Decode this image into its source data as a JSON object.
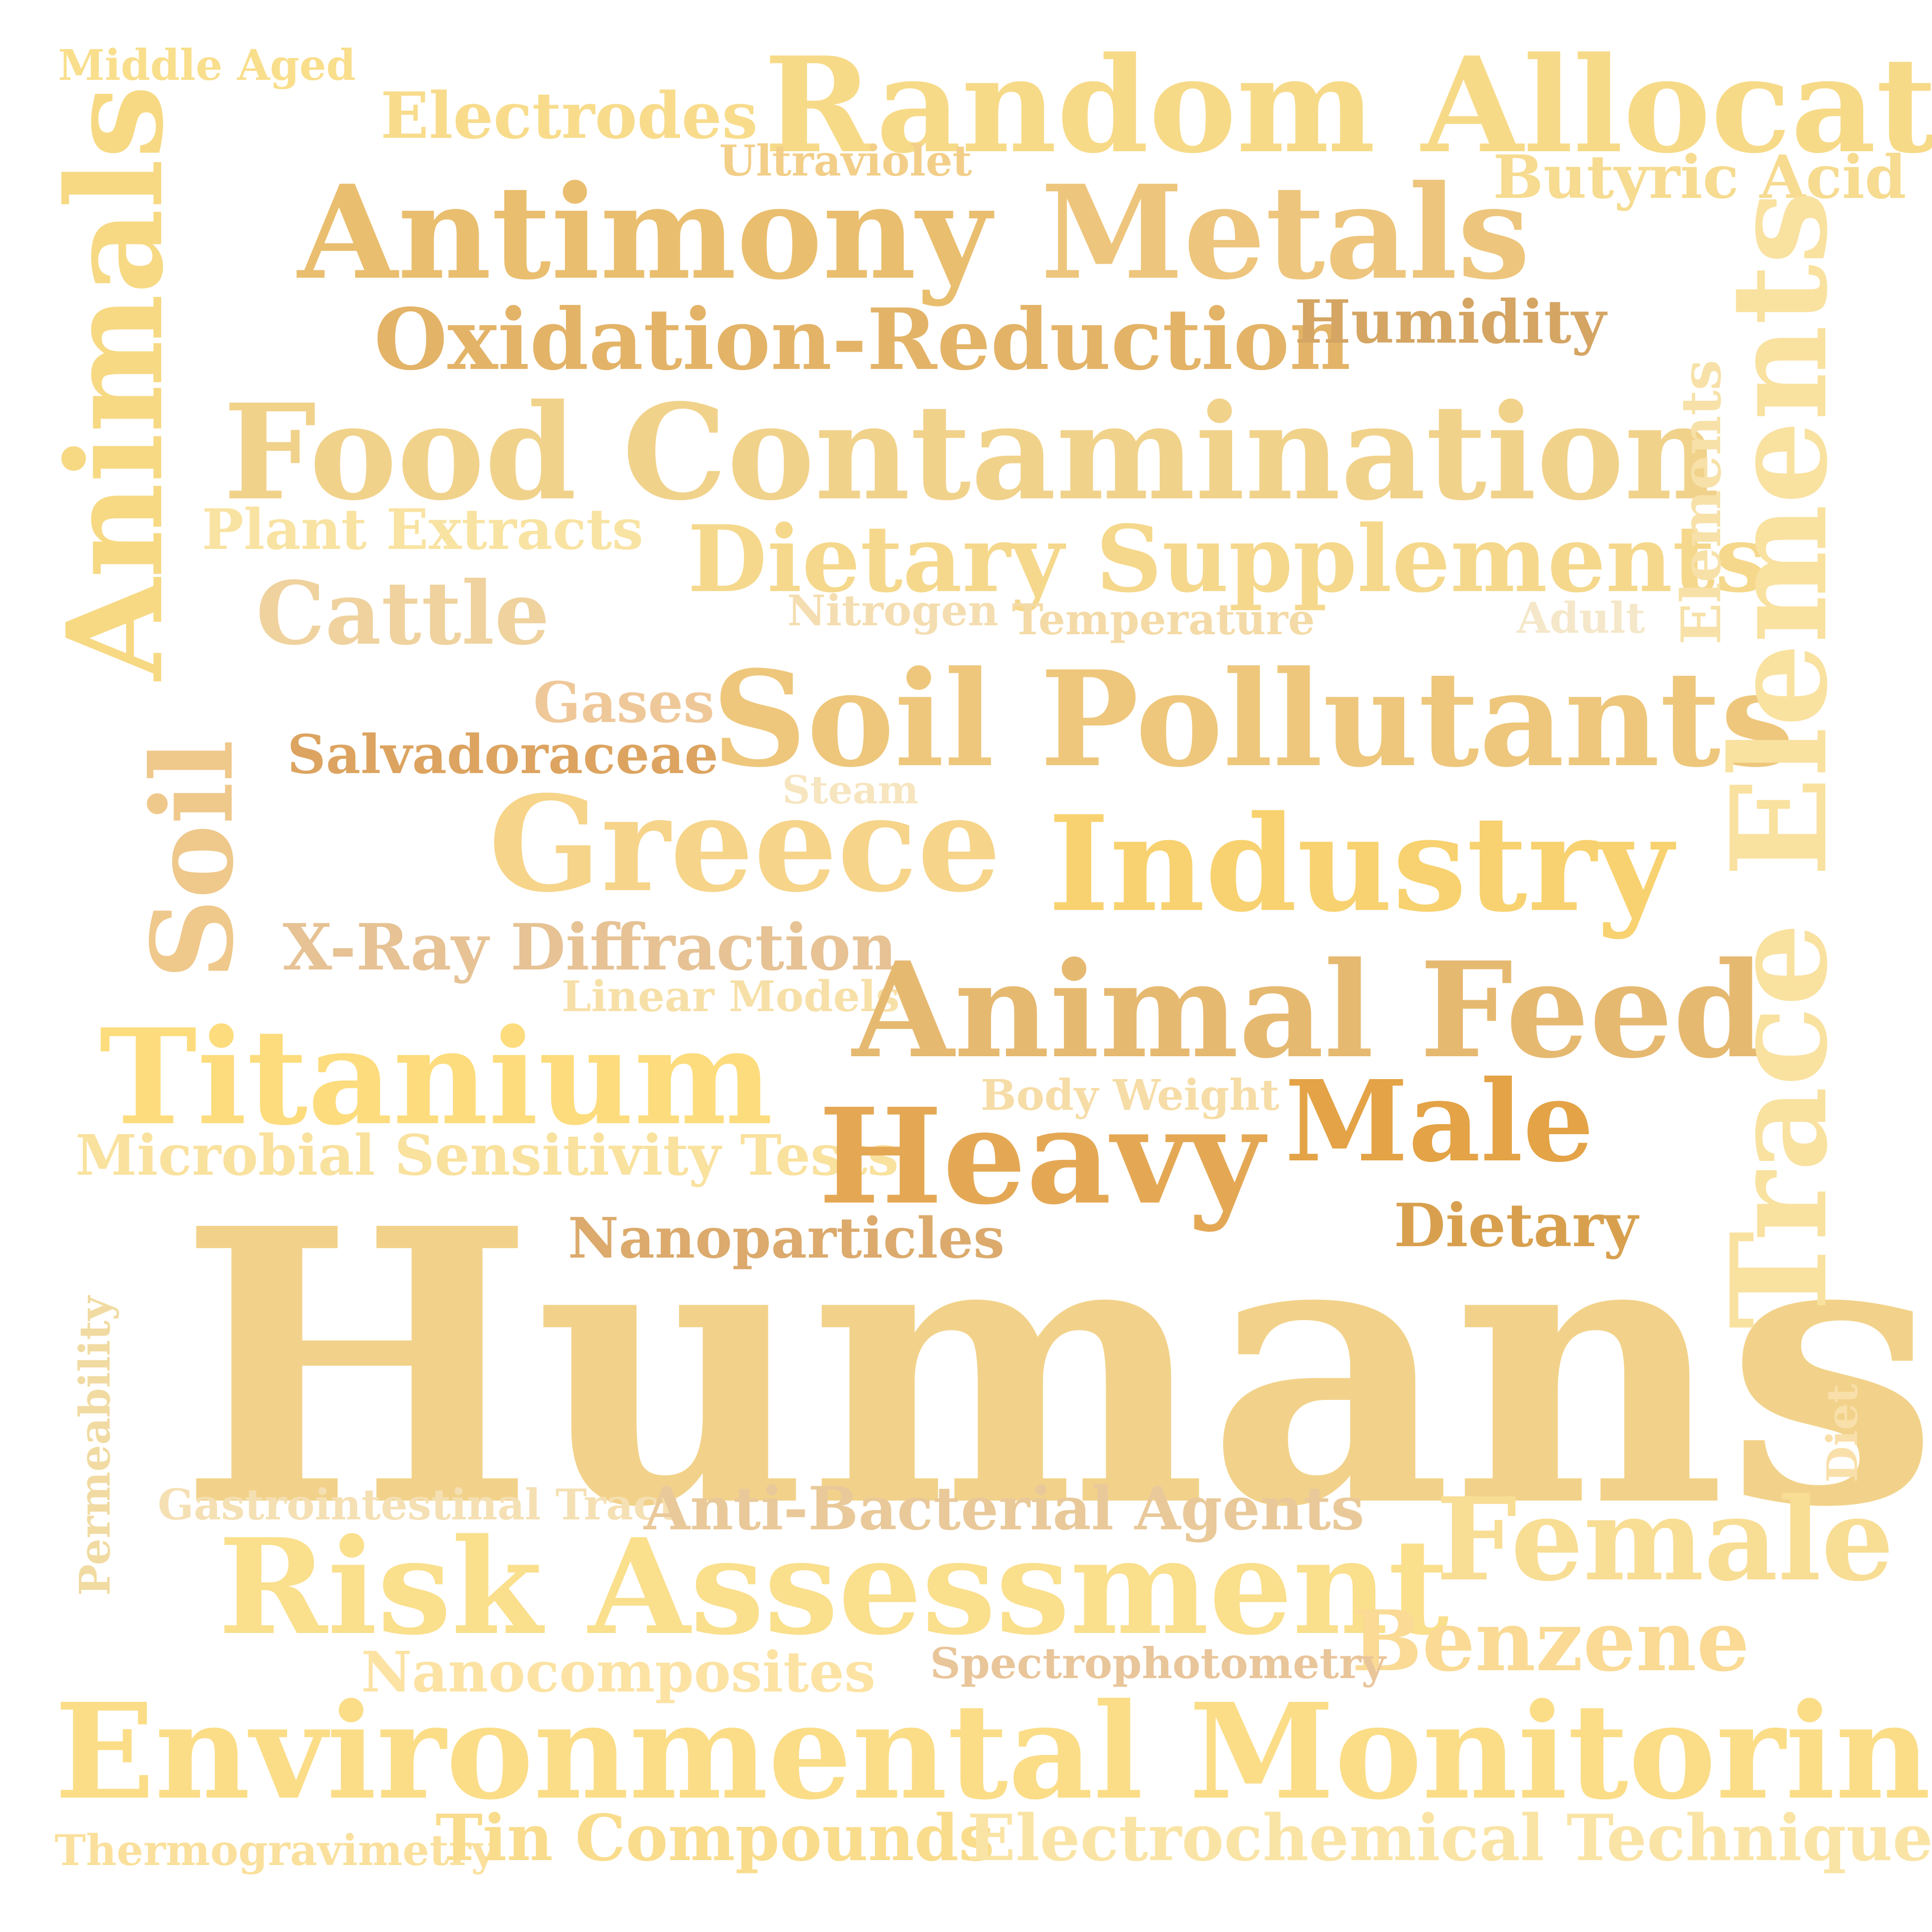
{
  "words": {
    "middle_aged": {
      "text": "Middle Aged",
      "color": "#F9DE8C"
    },
    "electrodes": {
      "text": "Electrodes",
      "color": "#F8DC8C"
    },
    "random_allocation": {
      "text": "Random Allocation",
      "color": "#F7DA88"
    },
    "ultraviolet": {
      "text": "Ultraviolet",
      "color": "#F2CE88"
    },
    "butyric_acid": {
      "text": "Butyric Acid",
      "color": "#F6DB90"
    },
    "animals": {
      "text": "Animals",
      "color": "#F7D984"
    },
    "antimony": {
      "text": "Antimony",
      "color": "#E9BE6E"
    },
    "metals": {
      "text": "Metals",
      "color": "#EDC57C"
    },
    "oxidation_reduction": {
      "text": "Oxidation-Reduction",
      "color": "#E3B367"
    },
    "humidity": {
      "text": "Humidity",
      "color": "#D4A563"
    },
    "trace_elements": {
      "text": "Trace Elements",
      "color": "#F9E1A0"
    },
    "elements": {
      "text": "Elements",
      "color": "#F7E1A8"
    },
    "food_contamination": {
      "text": "Food Contamination",
      "color": "#F1D28B"
    },
    "plant_extracts": {
      "text": "Plant Extracts",
      "color": "#F9E3A2"
    },
    "dietary_supplements": {
      "text": "Dietary Supplements",
      "color": "#F5D88C"
    },
    "cattle": {
      "text": "Cattle",
      "color": "#EFD29E"
    },
    "nitrogen": {
      "text": "Nitrogen",
      "color": "#F4DDB0"
    },
    "temperature": {
      "text": "Temperature",
      "color": "#F4DAA6"
    },
    "adult": {
      "text": "Adult",
      "color": "#F5E7C9"
    },
    "gases": {
      "text": "Gases",
      "color": "#EFC89A"
    },
    "soil_pollutants": {
      "text": "Soil Pollutants",
      "color": "#EEC77C"
    },
    "salvadoraceae": {
      "text": "Salvadoraceae",
      "color": "#DCA460"
    },
    "soil": {
      "text": "Soil",
      "color": "#EFC88B"
    },
    "steam": {
      "text": "Steam",
      "color": "#F6E5BF"
    },
    "greece": {
      "text": "Greece",
      "color": "#F6D489"
    },
    "industry": {
      "text": "Industry",
      "color": "#F8D270"
    },
    "x_ray_diffraction": {
      "text": "X-Ray Diffraction",
      "color": "#E6C294"
    },
    "linear_models": {
      "text": "Linear Models",
      "color": "#F7E0A8"
    },
    "animal_feed": {
      "text": "Animal Feed",
      "color": "#E6B971"
    },
    "titanium": {
      "text": "Titanium",
      "color": "#FDDC7D"
    },
    "body_weight": {
      "text": "Body Weight",
      "color": "#F6DCA6"
    },
    "male": {
      "text": "Male",
      "color": "#E3A346"
    },
    "microbial_sensitivity_tests": {
      "text": "Microbial Sensitivity Tests",
      "color": "#F9E19E"
    },
    "heavy": {
      "text": "Heavy",
      "color": "#E4A855"
    },
    "nanoparticles": {
      "text": "Nanoparticles",
      "color": "#DBAA6C"
    },
    "dietary": {
      "text": "Dietary",
      "color": "#D8A04E"
    },
    "permeability": {
      "text": "Permeability",
      "color": "#F1DBA2"
    },
    "humans": {
      "text": "Humans",
      "color": "#F2D28A"
    },
    "diet": {
      "text": "Diet",
      "color": "#F9E0AA"
    },
    "gastrointestinal_tract": {
      "text": "Gastrointestinal Tract",
      "color": "#F5E0B4"
    },
    "anti_bacterial_agents": {
      "text": "Anti-Bacterial Agents",
      "color": "#E9C999"
    },
    "female": {
      "text": "Female",
      "color": "#F8DD94"
    },
    "risk_assessment": {
      "text": "Risk Assessment",
      "color": "#FADF8C"
    },
    "benzene": {
      "text": "Benzene",
      "color": "#FADA94"
    },
    "nanocomposites": {
      "text": "Nanocomposites",
      "color": "#FCE3A4"
    },
    "spectrophotometry": {
      "text": "Spectrophotometry",
      "color": "#E9C59A"
    },
    "environmental_monitoring": {
      "text": "Environmental Monitoring",
      "color": "#FBDD88"
    },
    "thermogravimetry": {
      "text": "Thermogravimetry",
      "color": "#FAE09C"
    },
    "tin_compounds": {
      "text": "Tin Compounds",
      "color": "#F9DC8C"
    },
    "electrochemical_techniques": {
      "text": "Electrochemical Techniques",
      "color": "#FAE4A5"
    }
  }
}
